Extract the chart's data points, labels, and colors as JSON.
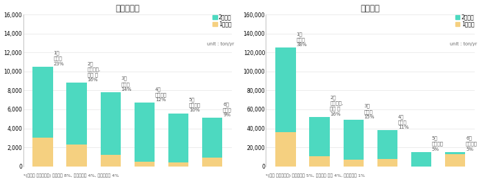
{
  "left_title": "〈수도권〉",
  "right_title": "〈전국〉",
  "color_secondary": "#4DD9C0",
  "color_primary": "#F5D080",
  "legend_secondary": "2차생성",
  "legend_primary": "1차배출",
  "unit_text": "unit : ton/yr",
  "left_footer": "*(수도권 기타배출원) 비산먼지 8%, 생물성연소 4%, 휘발유창등 4%",
  "right_footer": "*(전국 기타배출원) 생물성연소 5%, 유기용제 사용 4%, 휘발유창등 1%",
  "left": {
    "ylim": [
      0,
      16000
    ],
    "yticks": [
      0,
      2000,
      4000,
      6000,
      8000,
      10000,
      12000,
      14000,
      16000
    ],
    "bar_labels": [
      "1위\n경유차\n23%",
      "2위\n건설기계,\n선박 등\n16%",
      "3위\n사업장\n14%",
      "4위\n냉난방등\n12%",
      "5위\n유기용제\n10%",
      "6위\n발전소\n9%"
    ],
    "secondary": [
      7500,
      6500,
      6600,
      6200,
      5200,
      4200
    ],
    "primary": [
      3000,
      2300,
      1200,
      500,
      400,
      900
    ]
  },
  "right": {
    "ylim": [
      0,
      160000
    ],
    "yticks": [
      0,
      20000,
      40000,
      60000,
      80000,
      100000,
      120000,
      140000,
      160000
    ],
    "bar_labels": [
      "1위\n사업장\n38%",
      "2위\n건설기계,\n선박 등\n16%",
      "3위\n발전소\n15%",
      "4위\n경유차\n11%",
      "5위\n냉난방등\n5%",
      "6위\n비산먼지\n5%"
    ],
    "secondary": [
      89000,
      41000,
      42000,
      30000,
      15000,
      2000
    ],
    "primary": [
      36000,
      11000,
      7000,
      8000,
      0,
      13000
    ]
  }
}
